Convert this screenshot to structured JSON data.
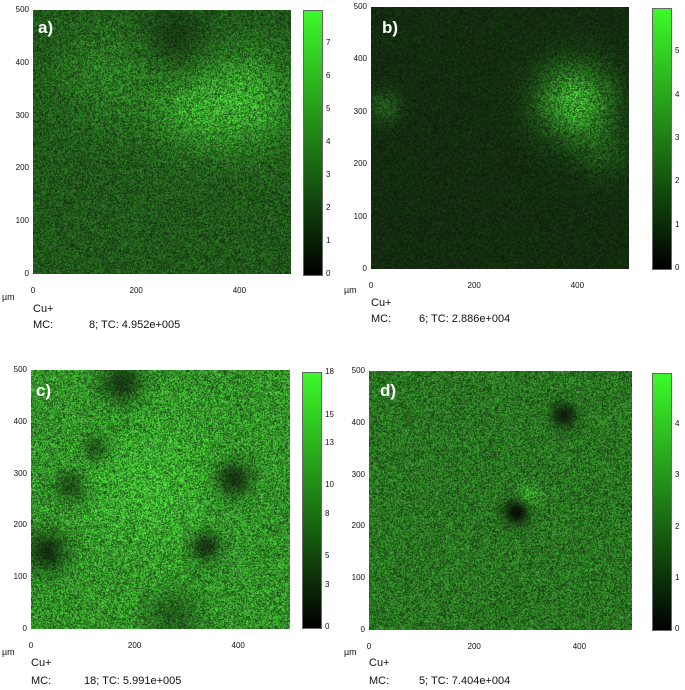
{
  "panels": [
    {
      "id": "a",
      "label": "a)",
      "unit": "µm",
      "y_ticks": [
        "500",
        "400",
        "300",
        "200",
        "100",
        "0"
      ],
      "x_ticks": [
        "0",
        "200",
        "400"
      ],
      "colorbar_ticks": [
        "7",
        "6",
        "5",
        "4",
        "3",
        "2",
        "1",
        "0"
      ],
      "colorbar_max": 8,
      "mean_intensity": 0.32,
      "hotspots": [
        {
          "cx": 0.82,
          "cy": 0.34,
          "r": 0.18,
          "strength": 0.35
        },
        {
          "cx": 0.6,
          "cy": 0.38,
          "r": 0.15,
          "strength": 0.22
        },
        {
          "cx": 0.3,
          "cy": 0.25,
          "r": 0.2,
          "strength": 0.15
        }
      ],
      "darkspots": [
        {
          "cx": 0.55,
          "cy": 0.1,
          "r": 0.12,
          "strength": 0.15
        }
      ],
      "species": "Cu+",
      "mc_label": "MC:",
      "mc_value": "8; TC: 4.952e+005"
    },
    {
      "id": "b",
      "label": "b)",
      "unit": "µm",
      "y_ticks": [
        "500",
        "400",
        "300",
        "200",
        "100",
        "0"
      ],
      "x_ticks": [
        "0",
        "200",
        "400"
      ],
      "colorbar_ticks": [
        "5",
        "4",
        "3",
        "2",
        "1",
        "0"
      ],
      "colorbar_max": 6,
      "mean_intensity": 0.12,
      "hotspots": [
        {
          "cx": 0.79,
          "cy": 0.36,
          "r": 0.14,
          "strength": 0.55
        },
        {
          "cx": 0.9,
          "cy": 0.55,
          "r": 0.1,
          "strength": 0.15
        },
        {
          "cx": 0.05,
          "cy": 0.38,
          "r": 0.06,
          "strength": 0.2
        }
      ],
      "darkspots": [],
      "species": "Cu+",
      "mc_label": "MC:",
      "mc_value": "6; TC: 2.886e+004"
    },
    {
      "id": "c",
      "label": "c)",
      "unit": "µm",
      "y_ticks": [
        "500",
        "400",
        "300",
        "200",
        "100",
        "0"
      ],
      "x_ticks": [
        "0",
        "200",
        "400"
      ],
      "colorbar_ticks": [
        "18",
        "15",
        "13",
        "10",
        "8",
        "5",
        "3",
        "0"
      ],
      "colorbar_max": 18,
      "mean_intensity": 0.58,
      "hotspots": [
        {
          "cx": 0.45,
          "cy": 0.45,
          "r": 0.25,
          "strength": 0.15
        }
      ],
      "darkspots": [
        {
          "cx": 0.06,
          "cy": 0.7,
          "r": 0.08,
          "strength": 0.45
        },
        {
          "cx": 0.15,
          "cy": 0.45,
          "r": 0.06,
          "strength": 0.35
        },
        {
          "cx": 0.25,
          "cy": 0.3,
          "r": 0.05,
          "strength": 0.3
        },
        {
          "cx": 0.78,
          "cy": 0.42,
          "r": 0.07,
          "strength": 0.45
        },
        {
          "cx": 0.67,
          "cy": 0.68,
          "r": 0.06,
          "strength": 0.45
        },
        {
          "cx": 0.35,
          "cy": 0.05,
          "r": 0.08,
          "strength": 0.4
        },
        {
          "cx": 0.55,
          "cy": 0.95,
          "r": 0.1,
          "strength": 0.25
        }
      ],
      "species": "Cu+",
      "mc_label": "MC:",
      "mc_value": "18; TC: 5.991e+005"
    },
    {
      "id": "d",
      "label": "d)",
      "unit": "µm",
      "y_ticks": [
        "500",
        "400",
        "300",
        "200",
        "100",
        "0"
      ],
      "x_ticks": [
        "0",
        "200",
        "400"
      ],
      "colorbar_ticks": [
        "4",
        "3",
        "2",
        "1",
        "0"
      ],
      "colorbar_max": 5,
      "mean_intensity": 0.45,
      "hotspots": [
        {
          "cx": 0.6,
          "cy": 0.48,
          "r": 0.05,
          "strength": 0.2
        }
      ],
      "darkspots": [
        {
          "cx": 0.56,
          "cy": 0.54,
          "r": 0.05,
          "strength": 0.5
        },
        {
          "cx": 0.74,
          "cy": 0.17,
          "r": 0.05,
          "strength": 0.4
        }
      ],
      "species": "Cu+",
      "mc_label": "MC:",
      "mc_value": "5; TC: 7.404e+004"
    }
  ],
  "colors": {
    "map_low": "#0b1a08",
    "map_high": "#4fe040",
    "colorbar_top": "#3dfa2a",
    "colorbar_bottom": "#000000"
  }
}
